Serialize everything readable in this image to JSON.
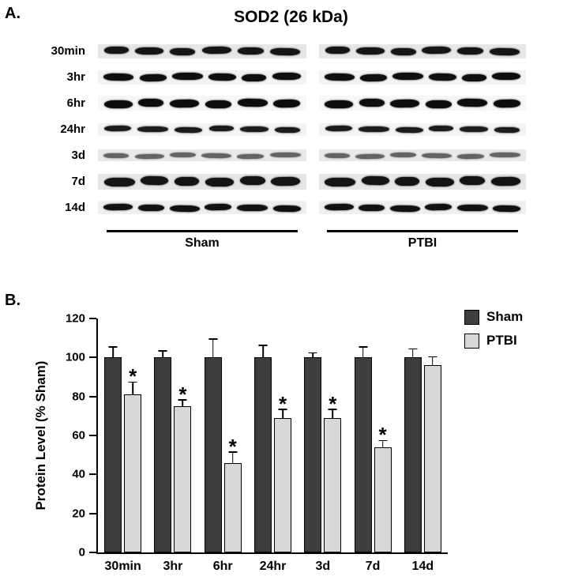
{
  "panelA": {
    "label": "A.",
    "title": "SOD2 (26 kDa)",
    "lanes_per_group": 6,
    "groups": [
      {
        "label": "Sham"
      },
      {
        "label": "PTBI"
      }
    ],
    "rows": [
      {
        "label": "30min",
        "thickness": 9,
        "color": "#161616",
        "strip": "#e7e7e7"
      },
      {
        "label": "3hr",
        "thickness": 9,
        "color": "#0f0f0f",
        "strip": "#f3f3f3"
      },
      {
        "label": "6hr",
        "thickness": 10,
        "color": "#0d0d0d",
        "strip": "#f6f6f6"
      },
      {
        "label": "24hr",
        "thickness": 7,
        "color": "#1c1c1c",
        "strip": "#f3f3f3"
      },
      {
        "label": "3d",
        "thickness": 6,
        "color": "#646464",
        "strip": "#e9e9e9"
      },
      {
        "label": "7d",
        "thickness": 11,
        "color": "#141414",
        "strip": "#e6e6e6"
      },
      {
        "label": "14d",
        "thickness": 8,
        "color": "#121212",
        "strip": "#efefef"
      }
    ]
  },
  "panelB": {
    "label": "B."
  },
  "chart_data": {
    "type": "bar",
    "title": "",
    "categories": [
      "30min",
      "3hr",
      "6hr",
      "24hr",
      "3d",
      "7d",
      "14d"
    ],
    "series": [
      {
        "name": "Sham",
        "color": "#3d3d3d",
        "values": [
          100,
          100,
          100,
          100,
          100,
          100,
          100
        ],
        "errors": [
          5,
          3,
          9,
          6,
          2,
          5,
          4
        ],
        "sig": [
          false,
          false,
          false,
          false,
          false,
          false,
          false
        ]
      },
      {
        "name": "PTBI",
        "color": "#d8d8d8",
        "values": [
          81,
          75,
          46,
          69,
          69,
          54,
          96
        ],
        "errors": [
          6,
          3,
          5,
          4,
          4,
          3,
          4
        ],
        "sig": [
          true,
          true,
          true,
          true,
          true,
          true,
          false
        ]
      }
    ],
    "xlabel": "",
    "ylabel": "Protein Level (% Sham)",
    "ylim": [
      0,
      120
    ],
    "yticks": [
      0,
      20,
      40,
      60,
      80,
      100,
      120
    ],
    "legend_position": "top-right",
    "significance_marker": "*"
  }
}
